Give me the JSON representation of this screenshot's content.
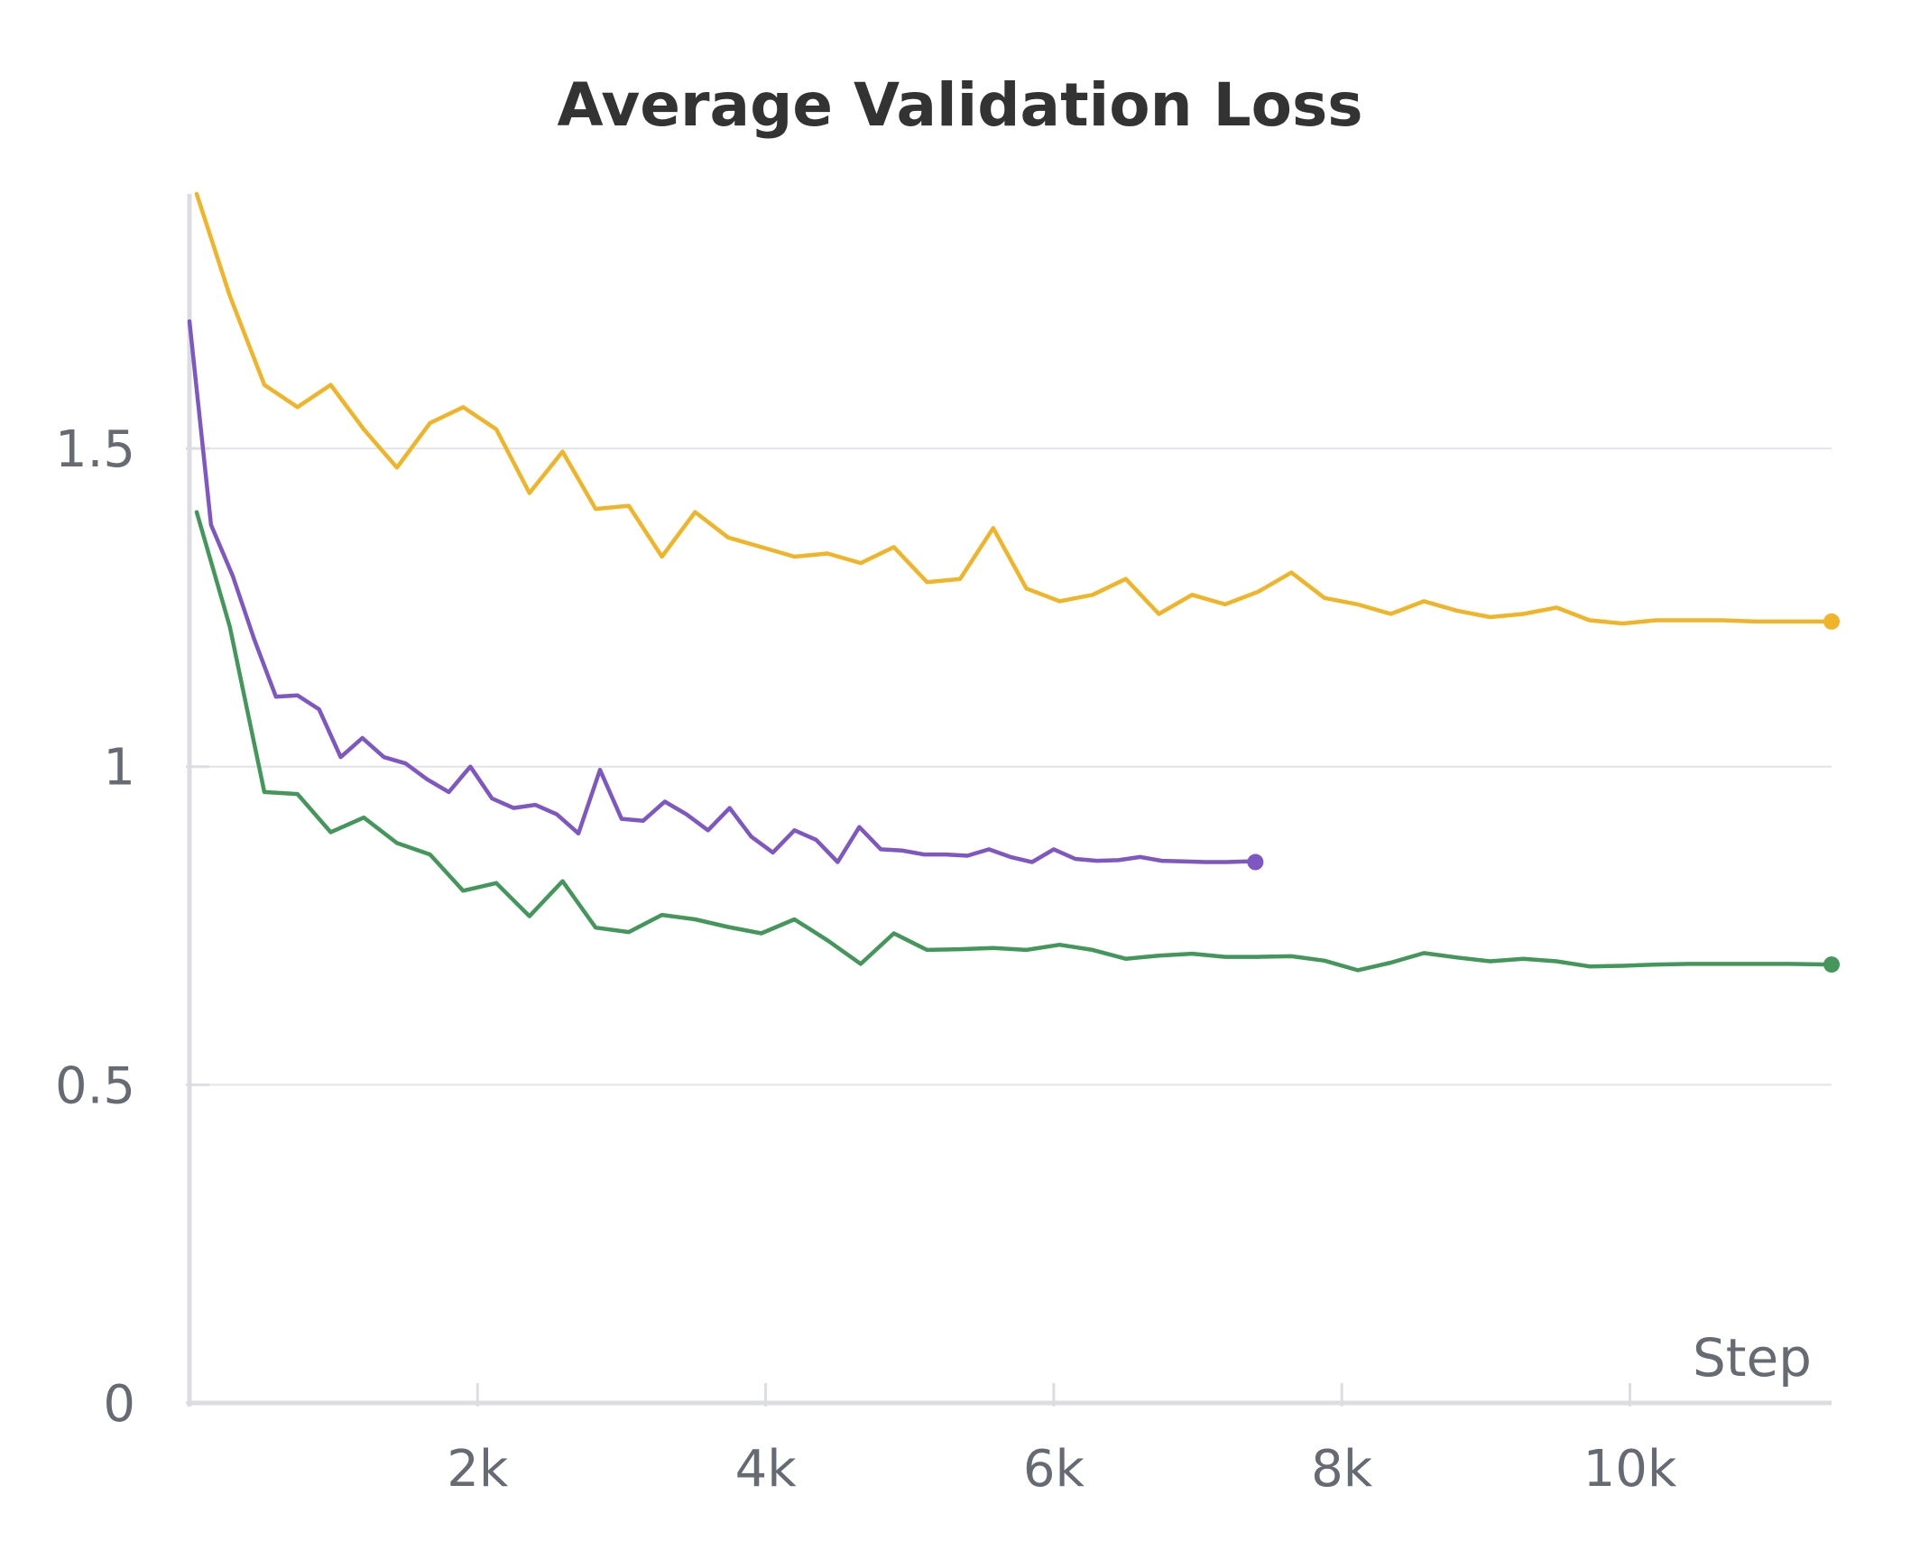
{
  "chart_data": {
    "type": "line",
    "title": "Average Validation Loss",
    "xlabel": "Step",
    "ylabel": "",
    "xlim": [
      0,
      11400
    ],
    "ylim": [
      0,
      1.9
    ],
    "x_ticks": [
      {
        "value": 2000,
        "label": "2k"
      },
      {
        "value": 4000,
        "label": "4k"
      },
      {
        "value": 6000,
        "label": "6k"
      },
      {
        "value": 8000,
        "label": "8k"
      },
      {
        "value": 10000,
        "label": "10k"
      }
    ],
    "y_ticks": [
      {
        "value": 0,
        "label": "0"
      },
      {
        "value": 0.5,
        "label": "0.5"
      },
      {
        "value": 1.0,
        "label": "1"
      },
      {
        "value": 1.5,
        "label": "1.5"
      }
    ],
    "grid": "horizontal",
    "legend": "none",
    "series": [
      {
        "color": "#f0b429",
        "x": [
          50,
          280,
          520,
          750,
          980,
          1210,
          1440,
          1670,
          1900,
          2130,
          2360,
          2590,
          2820,
          3050,
          3280,
          3510,
          3740,
          3970,
          4200,
          4430,
          4660,
          4890,
          5120,
          5350,
          5580,
          5810,
          6040,
          6270,
          6500,
          6730,
          6960,
          7190,
          7420,
          7650,
          7880,
          8110,
          8340,
          8570,
          8800,
          9030,
          9260,
          9490,
          9720,
          9950,
          10180,
          10410,
          10640,
          10870,
          11100,
          11400
        ],
        "y": [
          1.9,
          1.74,
          1.6,
          1.565,
          1.6,
          1.53,
          1.47,
          1.54,
          1.565,
          1.53,
          1.43,
          1.495,
          1.405,
          1.41,
          1.33,
          1.4,
          1.36,
          1.345,
          1.33,
          1.335,
          1.32,
          1.345,
          1.29,
          1.295,
          1.375,
          1.28,
          1.26,
          1.27,
          1.295,
          1.24,
          1.27,
          1.255,
          1.275,
          1.305,
          1.265,
          1.255,
          1.24,
          1.26,
          1.245,
          1.235,
          1.24,
          1.25,
          1.23,
          1.225,
          1.23,
          1.23,
          1.23,
          1.228,
          1.228,
          1.228
        ]
      },
      {
        "color": "#7e57c2",
        "x": [
          0,
          70,
          150,
          300,
          450,
          600,
          750,
          900,
          1050,
          1200,
          1350,
          1500,
          1650,
          1800,
          1950,
          2100,
          2250,
          2400,
          2550,
          2700,
          2850,
          3000,
          3150,
          3300,
          3450,
          3600,
          3750,
          3900,
          4050,
          4200,
          4350,
          4500,
          4650,
          4800,
          4950,
          5100,
          5250,
          5400,
          5550,
          5700,
          5850,
          6000,
          6150,
          6300,
          6450,
          6600,
          6750,
          6900,
          7050,
          7200,
          7350,
          7400
        ],
        "y": [
          1.7,
          1.55,
          1.38,
          1.3,
          1.2,
          1.11,
          1.112,
          1.09,
          1.015,
          1.045,
          1.015,
          1.005,
          0.98,
          0.96,
          1.0,
          0.95,
          0.935,
          0.94,
          0.925,
          0.895,
          0.995,
          0.918,
          0.915,
          0.945,
          0.925,
          0.9,
          0.935,
          0.89,
          0.865,
          0.9,
          0.885,
          0.85,
          0.905,
          0.87,
          0.868,
          0.862,
          0.862,
          0.86,
          0.87,
          0.858,
          0.85,
          0.87,
          0.855,
          0.852,
          0.853,
          0.858,
          0.852,
          0.851,
          0.85,
          0.85,
          0.851,
          0.85
        ]
      },
      {
        "color": "#43975a",
        "x": [
          50,
          280,
          520,
          750,
          980,
          1210,
          1440,
          1670,
          1900,
          2130,
          2360,
          2590,
          2820,
          3050,
          3280,
          3510,
          3740,
          3970,
          4200,
          4430,
          4660,
          4890,
          5120,
          5350,
          5580,
          5810,
          6040,
          6270,
          6500,
          6730,
          6960,
          7190,
          7420,
          7650,
          7880,
          8110,
          8340,
          8570,
          8800,
          9030,
          9260,
          9490,
          9720,
          9950,
          10180,
          10410,
          10640,
          10870,
          11100,
          11400
        ],
        "y": [
          1.4,
          1.22,
          0.96,
          0.957,
          0.897,
          0.92,
          0.88,
          0.862,
          0.805,
          0.817,
          0.765,
          0.82,
          0.747,
          0.74,
          0.767,
          0.76,
          0.748,
          0.738,
          0.76,
          0.727,
          0.69,
          0.738,
          0.712,
          0.713,
          0.715,
          0.712,
          0.72,
          0.712,
          0.698,
          0.703,
          0.706,
          0.701,
          0.701,
          0.702,
          0.695,
          0.68,
          0.692,
          0.707,
          0.7,
          0.694,
          0.698,
          0.694,
          0.686,
          0.687,
          0.689,
          0.69,
          0.69,
          0.69,
          0.69,
          0.689
        ]
      }
    ]
  }
}
